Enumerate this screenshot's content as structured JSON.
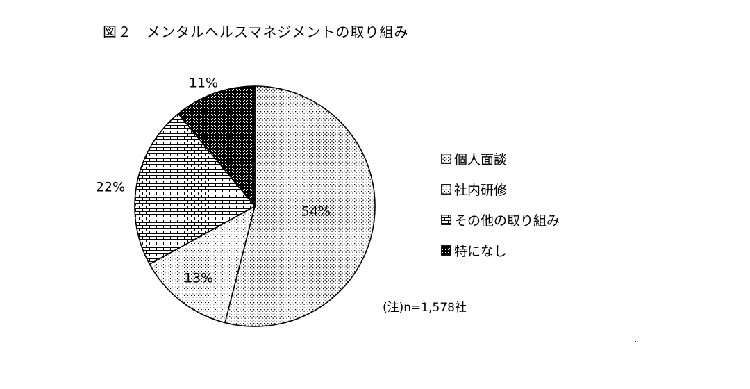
{
  "title": "図２　メンタルヘルスマネジメントの取り組み",
  "note": "(注)n=1,578社",
  "chart_data": {
    "type": "pie",
    "title": "図２　メンタルヘルスマネジメントの取り組み",
    "start_angle_deg": 0,
    "direction": "clockwise",
    "slices": [
      {
        "label": "個人面談",
        "value": 54,
        "display": "54%",
        "pattern": "dots-sparse"
      },
      {
        "label": "社内研修",
        "value": 13,
        "display": "13%",
        "pattern": "dots-fine"
      },
      {
        "label": "その他の取り組み",
        "value": 22,
        "display": "22%",
        "pattern": "bricks"
      },
      {
        "label": "特になし",
        "value": 11,
        "display": "11%",
        "pattern": "dark-grid"
      }
    ],
    "legend_position": "right",
    "note": "(注)n=1,578社"
  }
}
